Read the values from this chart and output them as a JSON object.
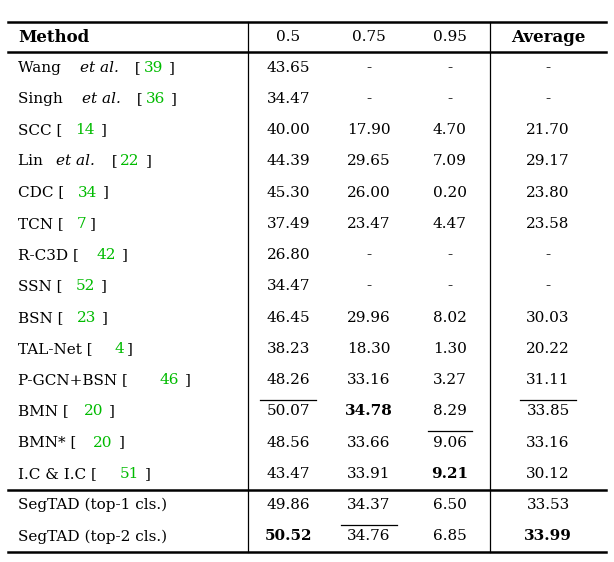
{
  "headers": [
    "Method",
    "0.5",
    "0.75",
    "0.95",
    "Average"
  ],
  "header_bold": [
    true,
    false,
    false,
    false,
    true
  ],
  "rows": [
    {
      "method": "Wang $et~al.$ [\\textcolor{green}{39}]",
      "method_parts": [
        {
          "text": "Wang ",
          "italic": false,
          "green": false
        },
        {
          "text": "et al.",
          "italic": true,
          "green": false
        },
        {
          "text": " [",
          "italic": false,
          "green": false
        },
        {
          "text": "39",
          "italic": false,
          "green": true
        },
        {
          "text": "]",
          "italic": false,
          "green": false
        }
      ],
      "values": [
        "43.65",
        "-",
        "-",
        "-"
      ],
      "bold": [
        false,
        false,
        false,
        false
      ],
      "underline": [
        false,
        false,
        false,
        false
      ],
      "segtad": false
    },
    {
      "method_parts": [
        {
          "text": "Singh ",
          "italic": false,
          "green": false
        },
        {
          "text": "et al.",
          "italic": true,
          "green": false
        },
        {
          "text": " [",
          "italic": false,
          "green": false
        },
        {
          "text": "36",
          "italic": false,
          "green": true
        },
        {
          "text": "]",
          "italic": false,
          "green": false
        }
      ],
      "values": [
        "34.47",
        "-",
        "-",
        "-"
      ],
      "bold": [
        false,
        false,
        false,
        false
      ],
      "underline": [
        false,
        false,
        false,
        false
      ],
      "segtad": false
    },
    {
      "method_parts": [
        {
          "text": "SCC [",
          "italic": false,
          "green": false
        },
        {
          "text": "14",
          "italic": false,
          "green": true
        },
        {
          "text": "]",
          "italic": false,
          "green": false
        }
      ],
      "values": [
        "40.00",
        "17.90",
        "4.70",
        "21.70"
      ],
      "bold": [
        false,
        false,
        false,
        false
      ],
      "underline": [
        false,
        false,
        false,
        false
      ],
      "segtad": false
    },
    {
      "method_parts": [
        {
          "text": "Lin ",
          "italic": false,
          "green": false
        },
        {
          "text": "et al.",
          "italic": true,
          "green": false
        },
        {
          "text": " [",
          "italic": false,
          "green": false
        },
        {
          "text": "22",
          "italic": false,
          "green": true
        },
        {
          "text": "]",
          "italic": false,
          "green": false
        }
      ],
      "values": [
        "44.39",
        "29.65",
        "7.09",
        "29.17"
      ],
      "bold": [
        false,
        false,
        false,
        false
      ],
      "underline": [
        false,
        false,
        false,
        false
      ],
      "segtad": false
    },
    {
      "method_parts": [
        {
          "text": "CDC [",
          "italic": false,
          "green": false
        },
        {
          "text": "34",
          "italic": false,
          "green": true
        },
        {
          "text": "]",
          "italic": false,
          "green": false
        }
      ],
      "values": [
        "45.30",
        "26.00",
        "0.20",
        "23.80"
      ],
      "bold": [
        false,
        false,
        false,
        false
      ],
      "underline": [
        false,
        false,
        false,
        false
      ],
      "segtad": false
    },
    {
      "method_parts": [
        {
          "text": "TCN [",
          "italic": false,
          "green": false
        },
        {
          "text": "7",
          "italic": false,
          "green": true
        },
        {
          "text": "]",
          "italic": false,
          "green": false
        }
      ],
      "values": [
        "37.49",
        "23.47",
        "4.47",
        "23.58"
      ],
      "bold": [
        false,
        false,
        false,
        false
      ],
      "underline": [
        false,
        false,
        false,
        false
      ],
      "segtad": false
    },
    {
      "method_parts": [
        {
          "text": "R-C3D [",
          "italic": false,
          "green": false
        },
        {
          "text": "42",
          "italic": false,
          "green": true
        },
        {
          "text": "]",
          "italic": false,
          "green": false
        }
      ],
      "values": [
        "26.80",
        "-",
        "-",
        "-"
      ],
      "bold": [
        false,
        false,
        false,
        false
      ],
      "underline": [
        false,
        false,
        false,
        false
      ],
      "segtad": false
    },
    {
      "method_parts": [
        {
          "text": "SSN [",
          "italic": false,
          "green": false
        },
        {
          "text": "52",
          "italic": false,
          "green": true
        },
        {
          "text": "]",
          "italic": false,
          "green": false
        }
      ],
      "values": [
        "34.47",
        "-",
        "-",
        "-"
      ],
      "bold": [
        false,
        false,
        false,
        false
      ],
      "underline": [
        false,
        false,
        false,
        false
      ],
      "segtad": false
    },
    {
      "method_parts": [
        {
          "text": "BSN [",
          "italic": false,
          "green": false
        },
        {
          "text": "23",
          "italic": false,
          "green": true
        },
        {
          "text": "]",
          "italic": false,
          "green": false
        }
      ],
      "values": [
        "46.45",
        "29.96",
        "8.02",
        "30.03"
      ],
      "bold": [
        false,
        false,
        false,
        false
      ],
      "underline": [
        false,
        false,
        false,
        false
      ],
      "segtad": false
    },
    {
      "method_parts": [
        {
          "text": "TAL-Net [",
          "italic": false,
          "green": false
        },
        {
          "text": "4",
          "italic": false,
          "green": true
        },
        {
          "text": "]",
          "italic": false,
          "green": false
        }
      ],
      "values": [
        "38.23",
        "18.30",
        "1.30",
        "20.22"
      ],
      "bold": [
        false,
        false,
        false,
        false
      ],
      "underline": [
        false,
        false,
        false,
        false
      ],
      "segtad": false
    },
    {
      "method_parts": [
        {
          "text": "P-GCN+BSN [",
          "italic": false,
          "green": false
        },
        {
          "text": "46",
          "italic": false,
          "green": true
        },
        {
          "text": "]",
          "italic": false,
          "green": false
        }
      ],
      "values": [
        "48.26",
        "33.16",
        "3.27",
        "31.11"
      ],
      "bold": [
        false,
        false,
        false,
        false
      ],
      "underline": [
        false,
        false,
        false,
        false
      ],
      "segtad": false
    },
    {
      "method_parts": [
        {
          "text": "BMN [",
          "italic": false,
          "green": false
        },
        {
          "text": "20",
          "italic": false,
          "green": true
        },
        {
          "text": "]",
          "italic": false,
          "green": false
        }
      ],
      "values": [
        "50.07",
        "34.78",
        "8.29",
        "33.85"
      ],
      "bold": [
        false,
        true,
        false,
        false
      ],
      "underline": [
        true,
        false,
        false,
        true
      ],
      "segtad": false
    },
    {
      "method_parts": [
        {
          "text": "BMN* [",
          "italic": false,
          "green": false
        },
        {
          "text": "20",
          "italic": false,
          "green": true
        },
        {
          "text": "]",
          "italic": false,
          "green": false
        }
      ],
      "values": [
        "48.56",
        "33.66",
        "9.06",
        "33.16"
      ],
      "bold": [
        false,
        false,
        false,
        false
      ],
      "underline": [
        false,
        false,
        true,
        false
      ],
      "segtad": false
    },
    {
      "method_parts": [
        {
          "text": "I.C & I.C [",
          "italic": false,
          "green": false
        },
        {
          "text": "51",
          "italic": false,
          "green": true
        },
        {
          "text": "]",
          "italic": false,
          "green": false
        }
      ],
      "values": [
        "43.47",
        "33.91",
        "9.21",
        "30.12"
      ],
      "bold": [
        false,
        false,
        true,
        false
      ],
      "underline": [
        false,
        false,
        false,
        false
      ],
      "segtad": false
    },
    {
      "method_parts": [
        {
          "text": "SegTAD (top-1 cls.)",
          "italic": false,
          "green": false
        }
      ],
      "values": [
        "49.86",
        "34.37",
        "6.50",
        "33.53"
      ],
      "bold": [
        false,
        false,
        false,
        false
      ],
      "underline": [
        false,
        false,
        false,
        false
      ],
      "segtad": true
    },
    {
      "method_parts": [
        {
          "text": "SegTAD (top-2 cls.)",
          "italic": false,
          "green": false
        }
      ],
      "values": [
        "50.52",
        "34.76",
        "6.85",
        "33.99"
      ],
      "bold": [
        true,
        false,
        false,
        true
      ],
      "underline": [
        false,
        true,
        false,
        false
      ],
      "segtad": true
    }
  ],
  "fig_width": 6.14,
  "fig_height": 5.62,
  "dpi": 100,
  "font_size": 11.0,
  "green_color": "#00bb00",
  "bg_color": "#ffffff"
}
